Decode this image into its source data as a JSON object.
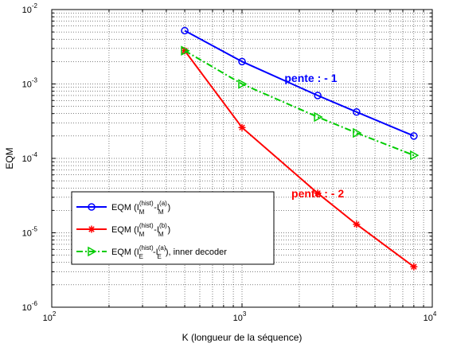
{
  "colors": {
    "blue": "#0000ff",
    "red": "#ff0000",
    "green": "#00cc00",
    "annot_blue": "#0000ff",
    "annot_red": "#ff0000"
  },
  "chart_data": {
    "type": "line",
    "title": "",
    "xlabel": "K (longueur de la séquence)",
    "ylabel": "EQM",
    "xscale": "log",
    "yscale": "log",
    "xlim": [
      100,
      10000
    ],
    "ylim": [
      1e-06,
      0.01
    ],
    "grid": true,
    "legend_position": "bottom-left",
    "xticks": [
      {
        "value": 100,
        "base": "10",
        "exp": "2"
      },
      {
        "value": 1000,
        "base": "10",
        "exp": "3"
      },
      {
        "value": 10000,
        "base": "10",
        "exp": "4"
      }
    ],
    "yticks": [
      {
        "value": 1e-06,
        "base": "10",
        "exp": "-6"
      },
      {
        "value": 1e-05,
        "base": "10",
        "exp": "-5"
      },
      {
        "value": 0.0001,
        "base": "10",
        "exp": "-4"
      },
      {
        "value": 0.001,
        "base": "10",
        "exp": "-3"
      },
      {
        "value": 0.01,
        "base": "10",
        "exp": "-2"
      }
    ],
    "series": [
      {
        "id": "blue",
        "marker": "circle",
        "dash": "solid",
        "legend": {
          "pre": "EQM (I",
          "sup1": "(hist)",
          "sub1": "M",
          "mid": "-I",
          "sup2": "(a)",
          "sub2": "M",
          "post": ")"
        },
        "x": [
          500,
          1000,
          2500,
          4000,
          8000
        ],
        "y": [
          0.0052,
          0.002,
          0.0007,
          0.00042,
          0.0002
        ]
      },
      {
        "id": "red",
        "marker": "star",
        "dash": "solid",
        "legend": {
          "pre": "EQM (I",
          "sup1": "(hist)",
          "sub1": "M",
          "mid": "-I",
          "sup2": "(b)",
          "sub2": "M",
          "post": ")"
        },
        "x": [
          500,
          1000,
          2500,
          4000,
          8000
        ],
        "y": [
          0.0028,
          0.00026,
          3.4e-05,
          1.3e-05,
          3.5e-06
        ]
      },
      {
        "id": "green",
        "marker": "triangle-right",
        "dash": "dashdot",
        "legend": {
          "pre": "EQM (I",
          "sup1": "(hist)",
          "sub1": "E",
          "mid": "-I",
          "sup2": "(a)",
          "sub2": "E",
          "post": "), inner decoder"
        },
        "x": [
          500,
          1000,
          2500,
          4000,
          8000
        ],
        "y": [
          0.0028,
          0.001,
          0.00036,
          0.00022,
          0.00011
        ]
      }
    ],
    "annotations": [
      {
        "id": "slope-1",
        "text": "pente : - 1",
        "color": "blue",
        "x": 2300,
        "y": 0.0012
      },
      {
        "id": "slope-2",
        "text": "pente : - 2",
        "color": "red",
        "x": 2500,
        "y": 3.4e-05
      }
    ]
  }
}
